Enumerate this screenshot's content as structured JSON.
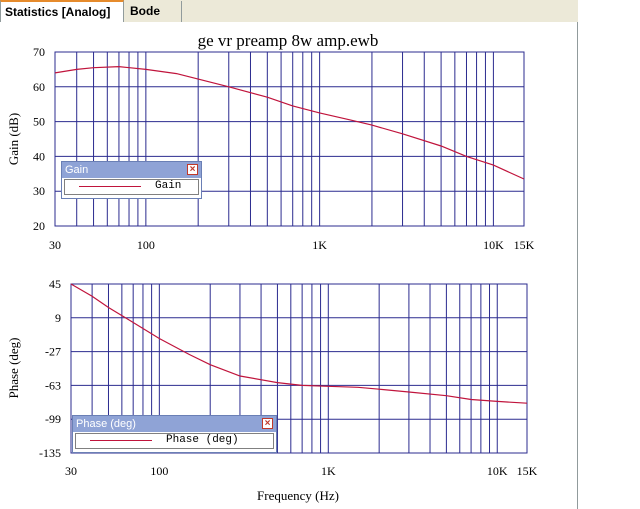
{
  "tabs": [
    {
      "label": "Statistics [Analog]",
      "active": true
    },
    {
      "label": "Bode",
      "active": false
    }
  ],
  "colors": {
    "grid": "#2b2b8f",
    "series": "#c0143c",
    "legend_bar": "#8fa3d6"
  },
  "chart_data": [
    {
      "type": "line",
      "title": "ge vr preamp 8w amp.ewb",
      "xlabel": "",
      "ylabel": "Gain (dB)",
      "xscale": "log",
      "xlim": [
        30,
        15000
      ],
      "ylim": [
        20,
        70
      ],
      "yticks": [
        20,
        30,
        40,
        50,
        60,
        70
      ],
      "xticks": [
        {
          "value": 30,
          "label": "30"
        },
        {
          "value": 100,
          "label": "100"
        },
        {
          "value": 1000,
          "label": "1K"
        },
        {
          "value": 10000,
          "label": "10K"
        },
        {
          "value": 15000,
          "label": "15K"
        }
      ],
      "grid": true,
      "legend": {
        "title": "Gain",
        "position": "left"
      },
      "series": [
        {
          "name": "Gain",
          "x": [
            30,
            40,
            50,
            70,
            100,
            150,
            200,
            300,
            500,
            700,
            1000,
            1500,
            2000,
            3000,
            5000,
            7000,
            10000,
            15000
          ],
          "y": [
            64,
            65,
            65.5,
            65.8,
            65,
            63.8,
            62.2,
            60,
            57,
            54.5,
            52.5,
            50.5,
            49,
            46.5,
            43,
            40,
            37.5,
            33.5
          ]
        }
      ]
    },
    {
      "type": "line",
      "title": "",
      "xlabel": "Frequency (Hz)",
      "ylabel": "Phase (deg)",
      "xscale": "log",
      "xlim": [
        30,
        15000
      ],
      "ylim": [
        -135,
        45
      ],
      "yticks": [
        -135,
        -99,
        -63,
        -27,
        9,
        45
      ],
      "xticks": [
        {
          "value": 30,
          "label": "30"
        },
        {
          "value": 100,
          "label": "100"
        },
        {
          "value": 1000,
          "label": "1K"
        },
        {
          "value": 10000,
          "label": "10K"
        },
        {
          "value": 15000,
          "label": "15K"
        }
      ],
      "grid": true,
      "legend": {
        "title": "Phase (deg)",
        "position": "bottom-left"
      },
      "series": [
        {
          "name": "Phase (deg)",
          "x": [
            30,
            40,
            50,
            70,
            100,
            150,
            200,
            300,
            500,
            700,
            1000,
            1500,
            2000,
            3000,
            5000,
            7000,
            10000,
            15000
          ],
          "y": [
            45,
            32,
            20,
            4,
            -13,
            -30,
            -41,
            -53,
            -60,
            -63,
            -64,
            -65,
            -67,
            -70,
            -74,
            -78,
            -80,
            -82
          ]
        }
      ]
    }
  ]
}
